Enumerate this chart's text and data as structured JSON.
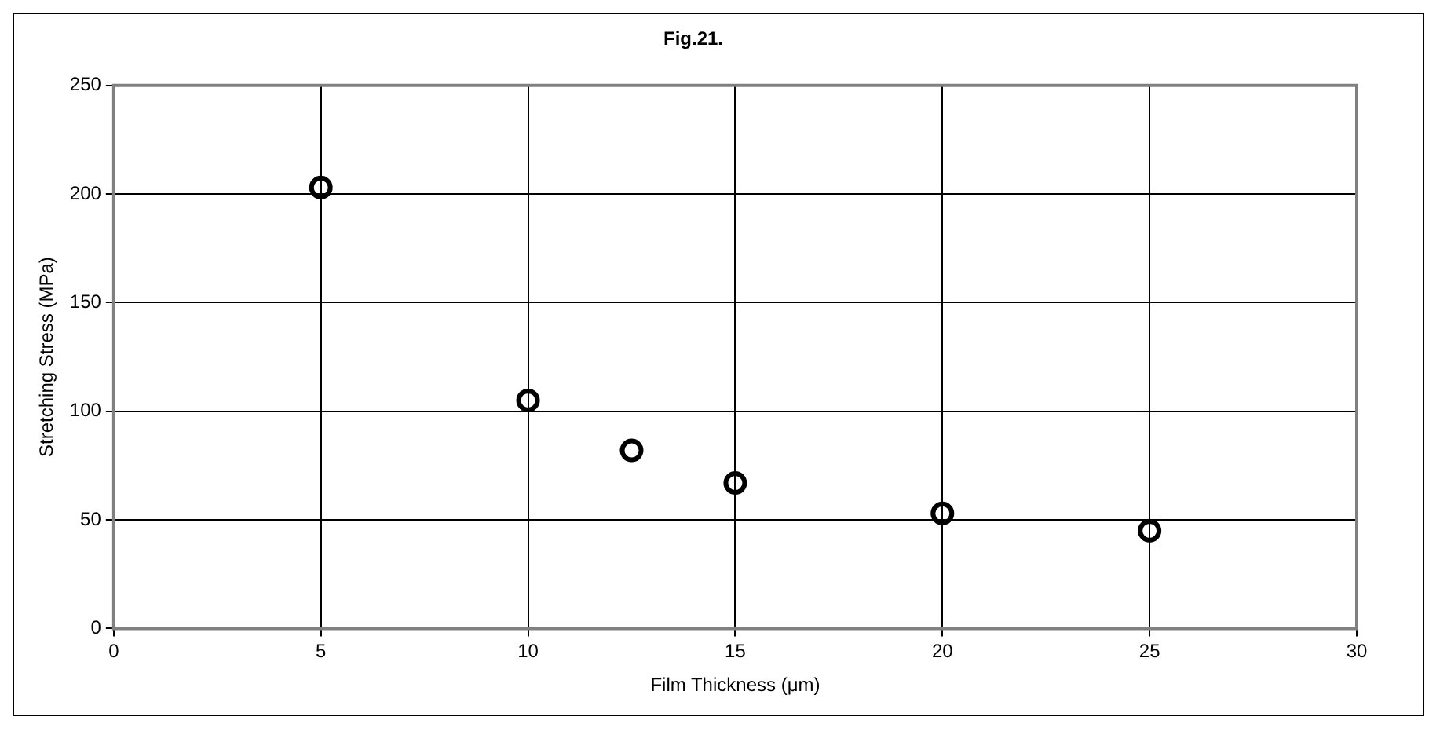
{
  "chart_data": {
    "type": "scatter",
    "title": "Fig.21.",
    "xlabel": "Film Thickness (μm)",
    "ylabel": "Stretching Stress (MPa)",
    "x": [
      5,
      10,
      12.5,
      15,
      20,
      25
    ],
    "series": [
      {
        "color": "#000000",
        "values": [
          203,
          105,
          82,
          67,
          53,
          45
        ]
      }
    ],
    "xlim": [
      0,
      30
    ],
    "xticks": [
      0,
      5,
      10,
      15,
      20,
      25,
      30
    ],
    "ylim": [
      0,
      250
    ],
    "yticks": [
      0,
      50,
      100,
      150,
      200,
      250
    ],
    "grid": true,
    "marker": "circle",
    "legend": false
  }
}
